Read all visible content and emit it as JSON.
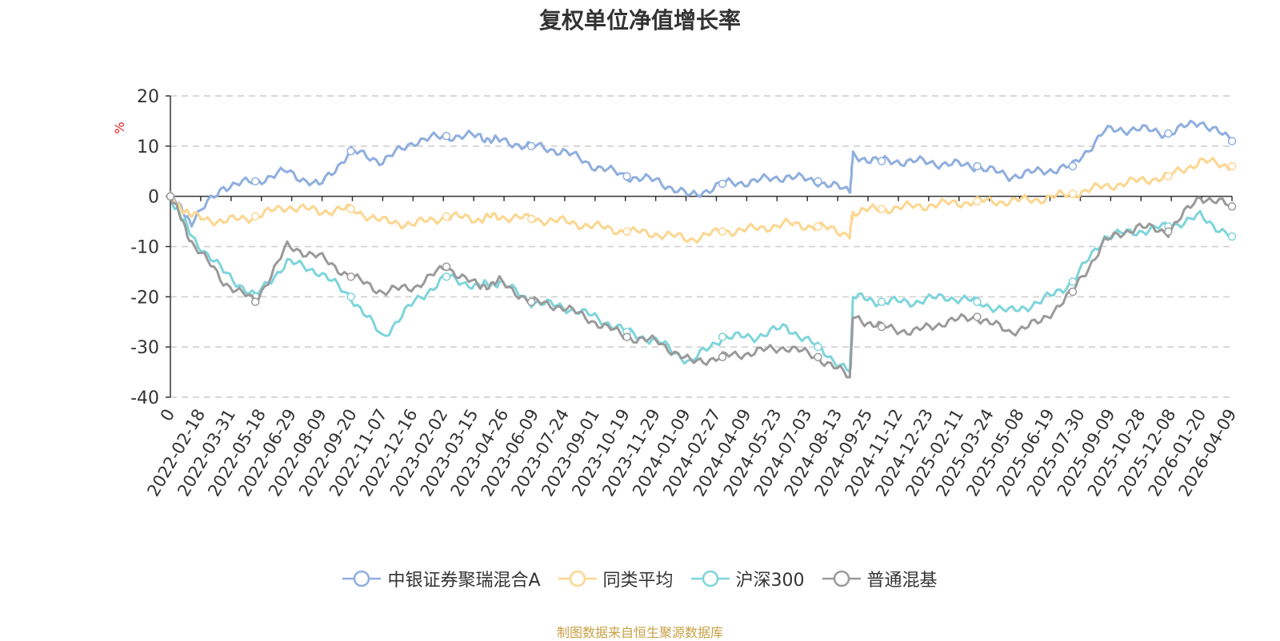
{
  "chart_data": {
    "type": "line",
    "title": "复权单位净值增长率",
    "ylabel": "%",
    "ylim": [
      -40,
      20
    ],
    "yticks": [
      20,
      10,
      0,
      -10,
      -20,
      -30,
      -40
    ],
    "grid": true,
    "legend_position": "bottom",
    "x_tick_labels": [
      "0",
      "2022-02-18",
      "2022-03-31",
      "2022-05-18",
      "2022-06-29",
      "2022-08-09",
      "2022-09-20",
      "2022-11-07",
      "2022-12-16",
      "2023-02-02",
      "2023-03-15",
      "2023-04-26",
      "2023-06-09",
      "2023-07-24",
      "2023-09-01",
      "2023-10-19",
      "2023-11-29",
      "2024-01-09",
      "2024-02-27",
      "2024-04-09",
      "2024-05-23",
      "2024-07-03",
      "2024-08-13",
      "2024-09-25",
      "2024-11-12",
      "2024-12-23",
      "2025-02-11",
      "2025-03-24",
      "2025-05-08",
      "2025-06-19",
      "2025-07-30",
      "2025-09-09",
      "2025-10-28",
      "2025-12-08",
      "2026-01-20",
      "2026-04-09"
    ],
    "x": [
      0,
      0.02,
      0.05,
      0.08,
      0.11,
      0.14,
      0.17,
      0.2,
      0.23,
      0.26,
      0.29,
      0.31,
      0.34,
      0.37,
      0.4,
      0.43,
      0.46,
      0.49,
      0.52,
      0.55,
      0.58,
      0.61,
      0.64,
      0.643,
      0.67,
      0.7,
      0.73,
      0.76,
      0.79,
      0.82,
      0.85,
      0.88,
      0.91,
      0.94,
      0.97,
      1.0
    ],
    "series": [
      {
        "name": "中银证券聚瑞混合A",
        "color": "#8eaede",
        "values": [
          0,
          -5,
          2,
          3,
          5,
          2,
          9,
          7,
          11,
          12,
          12,
          11,
          10,
          9,
          6,
          4,
          3,
          0,
          2.5,
          3,
          4,
          3,
          1,
          8,
          7,
          7,
          6.5,
          6,
          4,
          5,
          6,
          13,
          13.5,
          12.5,
          15,
          11
        ]
      },
      {
        "name": "同类平均",
        "color": "#fcd68f",
        "values": [
          0,
          -4,
          -5,
          -4,
          -2,
          -3,
          -2.5,
          -5,
          -5.5,
          -4,
          -4.5,
          -4,
          -4.5,
          -5,
          -6,
          -7,
          -7.5,
          -8.5,
          -7,
          -6.5,
          -5.5,
          -6,
          -7.5,
          -3,
          -2.5,
          -2,
          -1.5,
          -1,
          -1,
          -0.5,
          0.5,
          2,
          3,
          4,
          7,
          6
        ]
      },
      {
        "name": "沪深300",
        "color": "#7dd4db",
        "values": [
          0,
          -8,
          -15,
          -20,
          -13,
          -15,
          -20,
          -28,
          -21,
          -16,
          -18,
          -17,
          -21,
          -22,
          -24,
          -27,
          -29,
          -33,
          -28,
          -28,
          -26,
          -30,
          -35,
          -20,
          -21,
          -21,
          -20,
          -21,
          -23,
          -21,
          -17,
          -8,
          -7,
          -6,
          -4,
          -8
        ]
      },
      {
        "name": "普通混基",
        "color": "#9a9a9a",
        "values": [
          0,
          -9,
          -17,
          -21,
          -10,
          -12,
          -16,
          -19,
          -18,
          -14,
          -18,
          -17,
          -21,
          -22,
          -25,
          -28,
          -29,
          -33,
          -32,
          -31,
          -30,
          -32,
          -36,
          -24,
          -26,
          -27,
          -25,
          -24,
          -27,
          -25,
          -19,
          -9,
          -6,
          -7,
          0,
          -2
        ]
      }
    ]
  },
  "source": "制图数据来自恒生聚源数据库"
}
